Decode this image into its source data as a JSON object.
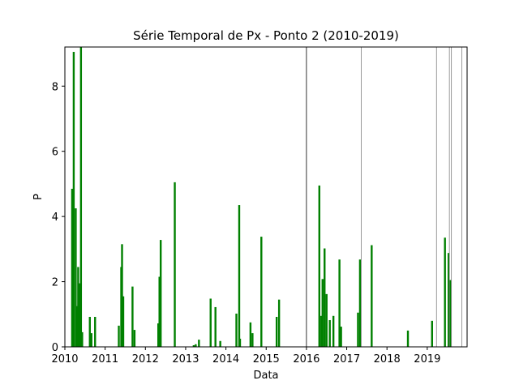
{
  "chart_data": {
    "type": "bar",
    "title": "Série Temporal de Px - Ponto 2 (2010-2019)",
    "xlabel": "Data",
    "ylabel": "P",
    "xlim": [
      2010.0,
      2019.99
    ],
    "ylim": [
      0,
      9.2
    ],
    "xticks": [
      2010,
      2011,
      2012,
      2013,
      2014,
      2015,
      2016,
      2017,
      2018,
      2019
    ],
    "yticks": [
      0,
      2,
      4,
      6,
      8
    ],
    "grid": false,
    "bar_color": "#008000",
    "vline_color": "#808080",
    "x": [
      2010.18,
      2010.22,
      2010.27,
      2010.29,
      2010.33,
      2010.36,
      2010.4,
      2010.43,
      2010.62,
      2010.66,
      2010.75,
      2011.34,
      2011.4,
      2011.42,
      2011.45,
      2011.68,
      2011.73,
      2012.32,
      2012.35,
      2012.38,
      2012.73,
      2013.2,
      2013.25,
      2013.33,
      2013.62,
      2013.74,
      2013.86,
      2014.26,
      2014.33,
      2014.35,
      2014.61,
      2014.66,
      2014.88,
      2015.26,
      2015.32,
      2016.32,
      2016.37,
      2016.4,
      2016.45,
      2016.5,
      2016.58,
      2016.67,
      2016.82,
      2016.86,
      2017.28,
      2017.33,
      2017.62,
      2018.52,
      2019.12,
      2019.44,
      2019.53,
      2019.57
    ],
    "values": [
      4.85,
      9.05,
      4.25,
      1.25,
      2.45,
      1.95,
      9.2,
      0.45,
      0.92,
      0.42,
      0.92,
      0.65,
      2.45,
      3.15,
      1.55,
      1.85,
      0.52,
      0.72,
      2.15,
      3.28,
      5.05,
      0.05,
      0.08,
      0.22,
      1.48,
      1.22,
      0.18,
      1.02,
      4.35,
      0.25,
      0.75,
      0.42,
      3.38,
      0.92,
      1.45,
      4.95,
      0.95,
      2.08,
      3.02,
      1.62,
      0.82,
      0.95,
      2.68,
      0.62,
      1.05,
      2.68,
      3.12,
      0.5,
      0.8,
      3.35,
      2.88,
      2.05
    ],
    "vlines": [
      {
        "x": 2016.0,
        "color": "#000000"
      },
      {
        "x": 2017.36,
        "color": "#808080"
      },
      {
        "x": 2019.23,
        "color": "#808080"
      },
      {
        "x": 2019.55,
        "color": "#808080"
      },
      {
        "x": 2019.6,
        "color": "#808080"
      },
      {
        "x": 2019.86,
        "color": "#808080"
      }
    ]
  }
}
